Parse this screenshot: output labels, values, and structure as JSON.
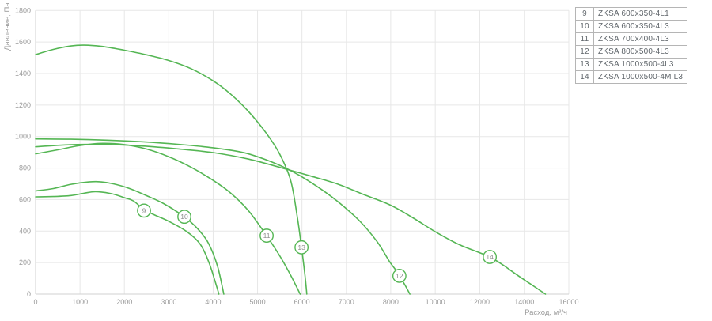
{
  "axes": {
    "x_title": "Расход, м³/ч",
    "y_title": "Давление, Па"
  },
  "legend": {
    "rows": [
      {
        "num": "9",
        "label": "ZKSA 600x350-4L1"
      },
      {
        "num": "10",
        "label": "ZKSA 600x350-4L3"
      },
      {
        "num": "11",
        "label": "ZKSA 700x400-4L3"
      },
      {
        "num": "12",
        "label": "ZKSA 800x500-4L3"
      },
      {
        "num": "13",
        "label": "ZKSA 1000x500-4L3"
      },
      {
        "num": "14",
        "label": "ZKSA 1000x500-4M L3"
      }
    ]
  },
  "colors": {
    "curve": "#55b654",
    "grid": "#e7e7e7",
    "spine": "#d2d2d2",
    "tick_text": "#9b9b9b",
    "axis_title_text": "#9b9b9b",
    "marker_text": "#8d8d8d",
    "legend_border": "#b5b5b5",
    "legend_text": "#60666b"
  },
  "chart_data": {
    "type": "line",
    "title": "",
    "xlabel": "Расход, м³/ч",
    "ylabel": "Давление, Па",
    "grid": true,
    "legend_position": "outside-top-right",
    "xlim": [
      0,
      16000
    ],
    "ylim": [
      0,
      1800
    ],
    "x_ticks": [
      0,
      1000,
      2000,
      3000,
      4000,
      5000,
      6000,
      7000,
      8000,
      10000,
      12000,
      14000,
      16000
    ],
    "x_axis_note": "non-linear axis: 1000 m3/h per division up to 8000, then 2000 m3/h per division",
    "y_ticks": [
      0,
      200,
      400,
      600,
      800,
      1000,
      1200,
      1400,
      1600,
      1800
    ],
    "series": [
      {
        "id": "9",
        "name": "ZKSA 600x350-4L1",
        "label_at": {
          "x": 2442,
          "y": 530
        },
        "points": [
          [
            0,
            617
          ],
          [
            400,
            619
          ],
          [
            800,
            626
          ],
          [
            1100,
            641
          ],
          [
            1350,
            650
          ],
          [
            1700,
            638
          ],
          [
            2000,
            612
          ],
          [
            2200,
            592
          ],
          [
            2450,
            535
          ],
          [
            2700,
            500
          ],
          [
            3000,
            462
          ],
          [
            3400,
            398
          ],
          [
            3700,
            320
          ],
          [
            3900,
            205
          ],
          [
            4050,
            75
          ],
          [
            4130,
            0
          ]
        ]
      },
      {
        "id": "10",
        "name": "ZKSA 600x350-4L3",
        "label_at": {
          "x": 3351,
          "y": 491
        },
        "points": [
          [
            0,
            655
          ],
          [
            400,
            670
          ],
          [
            800,
            697
          ],
          [
            1200,
            712
          ],
          [
            1450,
            713
          ],
          [
            1750,
            700
          ],
          [
            2100,
            672
          ],
          [
            2500,
            625
          ],
          [
            2900,
            572
          ],
          [
            3350,
            490
          ],
          [
            3650,
            415
          ],
          [
            3900,
            320
          ],
          [
            4100,
            175
          ],
          [
            4240,
            0
          ]
        ]
      },
      {
        "id": "11",
        "name": "ZKSA 700x400-4L3",
        "label_at": {
          "x": 5205,
          "y": 371
        },
        "points": [
          [
            0,
            890
          ],
          [
            500,
            916
          ],
          [
            1000,
            943
          ],
          [
            1500,
            957
          ],
          [
            2000,
            949
          ],
          [
            2500,
            921
          ],
          [
            3000,
            872
          ],
          [
            3500,
            806
          ],
          [
            4000,
            722
          ],
          [
            4400,
            640
          ],
          [
            4800,
            528
          ],
          [
            5200,
            372
          ],
          [
            5500,
            243
          ],
          [
            5750,
            118
          ],
          [
            5960,
            0
          ]
        ]
      },
      {
        "id": "12",
        "name": "ZKSA 800x500-4L3",
        "label_at": {
          "x": 8390,
          "y": 116
        },
        "points": [
          [
            0,
            985
          ],
          [
            800,
            983
          ],
          [
            1600,
            977
          ],
          [
            2400,
            967
          ],
          [
            3200,
            951
          ],
          [
            4000,
            929
          ],
          [
            4700,
            897
          ],
          [
            5300,
            841
          ],
          [
            5800,
            776
          ],
          [
            6300,
            691
          ],
          [
            6800,
            589
          ],
          [
            7300,
            464
          ],
          [
            7700,
            330
          ],
          [
            7960,
            212
          ],
          [
            8200,
            158
          ],
          [
            8400,
            114
          ],
          [
            8650,
            55
          ],
          [
            8860,
            0
          ]
        ]
      },
      {
        "id": "13",
        "name": "ZKSA 1000x500-4L3",
        "label_at": {
          "x": 5990,
          "y": 297
        },
        "points": [
          [
            0,
            1520
          ],
          [
            400,
            1553
          ],
          [
            800,
            1575
          ],
          [
            1100,
            1580
          ],
          [
            1500,
            1572
          ],
          [
            2000,
            1548
          ],
          [
            2500,
            1519
          ],
          [
            3000,
            1483
          ],
          [
            3500,
            1431
          ],
          [
            4000,
            1354
          ],
          [
            4400,
            1268
          ],
          [
            4800,
            1158
          ],
          [
            5200,
            1020
          ],
          [
            5500,
            888
          ],
          [
            5750,
            718
          ],
          [
            5900,
            480
          ],
          [
            5990,
            297
          ],
          [
            6060,
            140
          ],
          [
            6110,
            0
          ]
        ]
      },
      {
        "id": "14",
        "name": "ZKSA 1000x500-4M L3",
        "label_at": {
          "x": 12450,
          "y": 236
        },
        "points": [
          [
            0,
            935
          ],
          [
            800,
            948
          ],
          [
            1600,
            950
          ],
          [
            2400,
            940
          ],
          [
            3200,
            922
          ],
          [
            4000,
            898
          ],
          [
            4800,
            857
          ],
          [
            5600,
            797
          ],
          [
            6200,
            749
          ],
          [
            6800,
            699
          ],
          [
            7400,
            631
          ],
          [
            8000,
            564
          ],
          [
            9000,
            484
          ],
          [
            10000,
            396
          ],
          [
            11000,
            319
          ],
          [
            12000,
            262
          ],
          [
            12450,
            236
          ],
          [
            13000,
            189
          ],
          [
            13600,
            129
          ],
          [
            14300,
            62
          ],
          [
            14950,
            0
          ]
        ]
      }
    ]
  }
}
